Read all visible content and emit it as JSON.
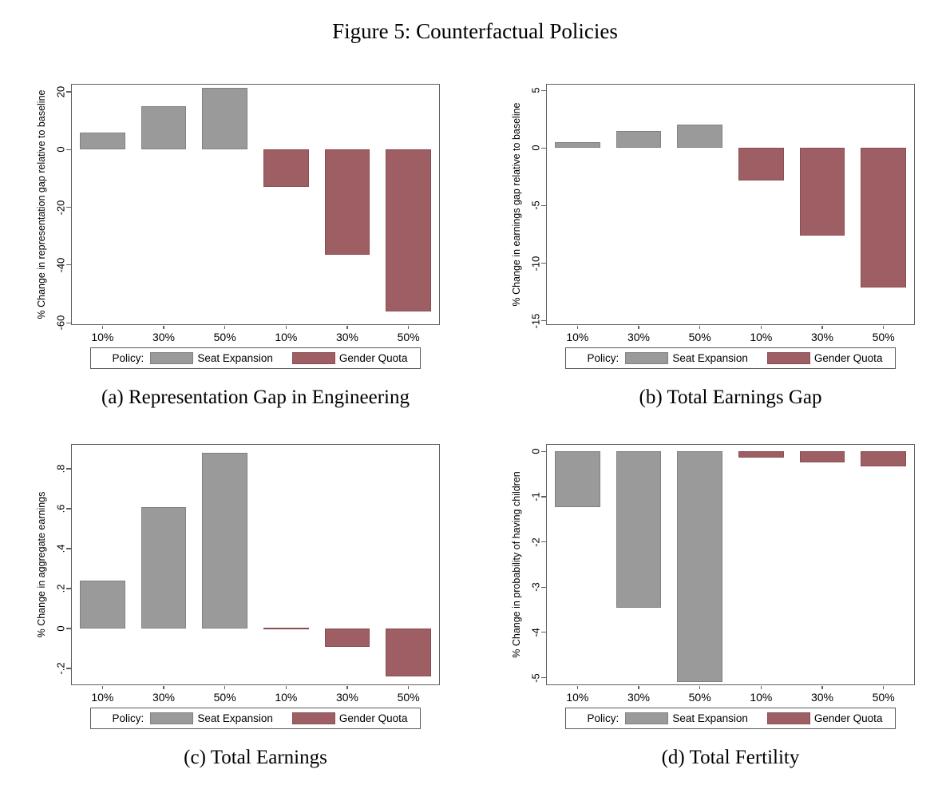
{
  "figure": {
    "title": "Figure 5: Counterfactual Policies"
  },
  "colors": {
    "seat_expansion_fill": "#9A9A9A",
    "seat_expansion_border": "#818181",
    "gender_quota_fill": "#9D5F63",
    "gender_quota_border": "#8B4D53",
    "axis_line": "#606060",
    "text": "#000000"
  },
  "legend": {
    "title": "Policy:",
    "position": "bottom",
    "entries": [
      {
        "label": "Seat Expansion",
        "policy": "seat_expansion"
      },
      {
        "label": "Gender Quota",
        "policy": "gender_quota"
      }
    ]
  },
  "chart_data": [
    {
      "panel": "a",
      "type": "bar",
      "caption": "(a) Representation Gap in Engineering",
      "xlabel": "",
      "ylabel": "% Change in representation gap relative to baseline",
      "categories": [
        "10%",
        "30%",
        "50%",
        "10%",
        "30%",
        "50%"
      ],
      "series": [
        {
          "name": "Seat Expansion",
          "policy": "seat_expansion",
          "values": [
            6,
            15,
            21.5
          ]
        },
        {
          "name": "Gender Quota",
          "policy": "gender_quota",
          "values": [
            -13,
            -36.5,
            -56
          ]
        }
      ],
      "yticks": [
        {
          "value": 20,
          "label": "20"
        },
        {
          "value": 0,
          "label": "0"
        },
        {
          "value": -20,
          "label": "-20"
        },
        {
          "value": -40,
          "label": "-40"
        },
        {
          "value": -60,
          "label": "-60"
        }
      ],
      "ylim": [
        22.5,
        -60.5
      ],
      "grid": false
    },
    {
      "panel": "b",
      "type": "bar",
      "caption": "(b) Total Earnings Gap",
      "xlabel": "",
      "ylabel": "% Change in earnings gap relative to baseline",
      "categories": [
        "10%",
        "30%",
        "50%",
        "10%",
        "30%",
        "50%"
      ],
      "series": [
        {
          "name": "Seat Expansion",
          "policy": "seat_expansion",
          "values": [
            0.5,
            1.5,
            2
          ]
        },
        {
          "name": "Gender Quota",
          "policy": "gender_quota",
          "values": [
            -2.8,
            -7.6,
            -12.1
          ]
        }
      ],
      "yticks": [
        {
          "value": 5,
          "label": "5"
        },
        {
          "value": 0,
          "label": "0"
        },
        {
          "value": -5,
          "label": "-5"
        },
        {
          "value": -10,
          "label": "-10"
        },
        {
          "value": -15,
          "label": "-15"
        }
      ],
      "ylim": [
        5.5,
        -15.3
      ],
      "grid": false
    },
    {
      "panel": "c",
      "type": "bar",
      "caption": "(c) Total Earnings",
      "xlabel": "",
      "ylabel": "% Change in aggregate earnings",
      "categories": [
        "10%",
        "30%",
        "50%",
        "10%",
        "30%",
        "50%"
      ],
      "series": [
        {
          "name": "Seat Expansion",
          "policy": "seat_expansion",
          "values": [
            0.24,
            0.61,
            0.88
          ]
        },
        {
          "name": "Gender Quota",
          "policy": "gender_quota",
          "values": [
            0.005,
            -0.09,
            -0.24
          ]
        }
      ],
      "yticks": [
        {
          "value": 0.8,
          "label": ".8"
        },
        {
          "value": 0.6,
          "label": ".6"
        },
        {
          "value": 0.4,
          "label": ".4"
        },
        {
          "value": 0.2,
          "label": ".2"
        },
        {
          "value": 0,
          "label": "0"
        },
        {
          "value": -0.2,
          "label": "-.2"
        }
      ],
      "ylim": [
        0.92,
        -0.28
      ],
      "grid": false
    },
    {
      "panel": "d",
      "type": "bar",
      "caption": "(d) Total Fertility",
      "xlabel": "",
      "ylabel": "% Change in probability of having children",
      "categories": [
        "10%",
        "30%",
        "50%",
        "10%",
        "30%",
        "50%"
      ],
      "series": [
        {
          "name": "Seat Expansion",
          "policy": "seat_expansion",
          "values": [
            -1.22,
            -3.45,
            -5.1
          ]
        },
        {
          "name": "Gender Quota",
          "policy": "gender_quota",
          "values": [
            -0.14,
            -0.24,
            -0.32
          ]
        }
      ],
      "yticks": [
        {
          "value": 0,
          "label": "0"
        },
        {
          "value": -1,
          "label": "-1"
        },
        {
          "value": -2,
          "label": "-2"
        },
        {
          "value": -3,
          "label": "-3"
        },
        {
          "value": -4,
          "label": "-4"
        },
        {
          "value": -5,
          "label": "-5"
        }
      ],
      "ylim": [
        0.15,
        -5.15
      ],
      "grid": false
    }
  ]
}
